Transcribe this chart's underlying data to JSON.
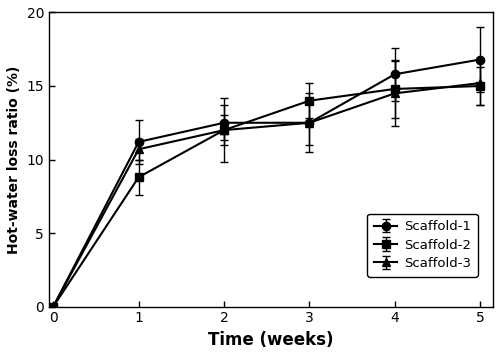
{
  "x": [
    0,
    1,
    2,
    3,
    4,
    5
  ],
  "scaffold1_y": [
    0,
    11.2,
    12.5,
    12.5,
    15.8,
    16.8
  ],
  "scaffold2_y": [
    0,
    8.8,
    12.0,
    14.0,
    14.8,
    15.0
  ],
  "scaffold3_y": [
    0,
    10.7,
    12.0,
    12.5,
    14.5,
    15.2
  ],
  "scaffold1_err": [
    0,
    1.5,
    1.2,
    2.0,
    1.8,
    2.2
  ],
  "scaffold2_err": [
    0,
    1.2,
    2.2,
    1.2,
    2.0,
    1.3
  ],
  "scaffold3_err": [
    0,
    0.7,
    1.0,
    1.5,
    2.2,
    1.5
  ],
  "xlabel": "Time (weeks)",
  "ylabel": "Hot-water loss ratio (%)",
  "xlim": [
    -0.05,
    5.15
  ],
  "ylim": [
    0,
    20
  ],
  "yticks": [
    0,
    5,
    10,
    15,
    20
  ],
  "xticks": [
    0,
    1,
    2,
    3,
    4,
    5
  ],
  "legend_labels": [
    "Scaffold-1",
    "Scaffold-2",
    "Scaffold-3"
  ],
  "line_color": "#000000",
  "bg_color": "#ffffff",
  "marker_size": 6,
  "line_width": 1.5,
  "capsize": 3,
  "legend_loc": "lower right",
  "xlabel_fontsize": 12,
  "ylabel_fontsize": 10,
  "tick_fontsize": 10
}
